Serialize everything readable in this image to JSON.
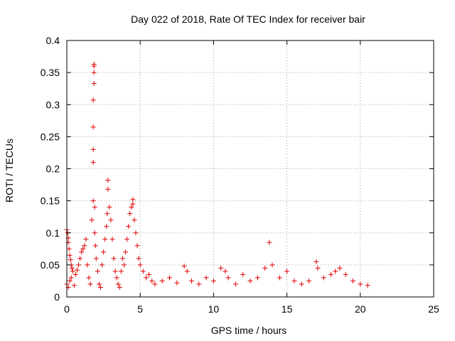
{
  "chart_data": {
    "type": "scatter",
    "title": "Day 022 of 2018, Rate Of TEC Index for receiver bair",
    "xlabel": "GPS time / hours",
    "ylabel": "ROTI / TECUs",
    "xlim": [
      0,
      25
    ],
    "ylim": [
      0,
      0.4
    ],
    "xticks": [
      0,
      5,
      10,
      15,
      20,
      25
    ],
    "yticks": [
      0,
      0.05,
      0.1,
      0.15,
      0.2,
      0.25,
      0.3,
      0.35,
      0.4
    ],
    "xtick_labels": [
      "0",
      "5",
      "10",
      "15",
      "20",
      "25"
    ],
    "ytick_labels": [
      "0",
      "0.05",
      "0.1",
      "0.15",
      "0.2",
      "0.25",
      "0.3",
      "0.35",
      "0.4"
    ],
    "grid": true,
    "marker": "+",
    "marker_color": "#e00000",
    "series": [
      {
        "points": [
          [
            0.0,
            0.105
          ],
          [
            0.05,
            0.1
          ],
          [
            0.1,
            0.092
          ],
          [
            0.1,
            0.085
          ],
          [
            0.15,
            0.075
          ],
          [
            0.2,
            0.065
          ],
          [
            0.25,
            0.058
          ],
          [
            0.3,
            0.05
          ],
          [
            0.35,
            0.045
          ],
          [
            0.4,
            0.04
          ],
          [
            0.0,
            0.02
          ],
          [
            0.1,
            0.015
          ],
          [
            0.2,
            0.025
          ],
          [
            0.3,
            0.03
          ],
          [
            0.5,
            0.018
          ],
          [
            0.6,
            0.035
          ],
          [
            0.7,
            0.042
          ],
          [
            0.8,
            0.05
          ],
          [
            0.9,
            0.06
          ],
          [
            1.0,
            0.07
          ],
          [
            1.1,
            0.075
          ],
          [
            1.2,
            0.08
          ],
          [
            1.3,
            0.09
          ],
          [
            1.4,
            0.05
          ],
          [
            1.5,
            0.03
          ],
          [
            1.6,
            0.02
          ],
          [
            1.7,
            0.12
          ],
          [
            1.8,
            0.15
          ],
          [
            1.8,
            0.21
          ],
          [
            1.8,
            0.23
          ],
          [
            1.8,
            0.265
          ],
          [
            1.8,
            0.307
          ],
          [
            1.85,
            0.333
          ],
          [
            1.85,
            0.35
          ],
          [
            1.85,
            0.36
          ],
          [
            1.85,
            0.363
          ],
          [
            1.9,
            0.14
          ],
          [
            1.9,
            0.1
          ],
          [
            1.95,
            0.08
          ],
          [
            2.0,
            0.06
          ],
          [
            2.1,
            0.04
          ],
          [
            2.2,
            0.02
          ],
          [
            2.3,
            0.015
          ],
          [
            2.4,
            0.05
          ],
          [
            2.5,
            0.07
          ],
          [
            2.6,
            0.09
          ],
          [
            2.7,
            0.11
          ],
          [
            2.75,
            0.13
          ],
          [
            2.8,
            0.168
          ],
          [
            2.8,
            0.182
          ],
          [
            2.9,
            0.14
          ],
          [
            3.0,
            0.12
          ],
          [
            3.1,
            0.09
          ],
          [
            3.2,
            0.06
          ],
          [
            3.3,
            0.04
          ],
          [
            3.4,
            0.03
          ],
          [
            3.5,
            0.02
          ],
          [
            3.6,
            0.015
          ],
          [
            3.7,
            0.04
          ],
          [
            3.8,
            0.06
          ],
          [
            3.9,
            0.05
          ],
          [
            4.0,
            0.07
          ],
          [
            4.1,
            0.09
          ],
          [
            4.2,
            0.11
          ],
          [
            4.3,
            0.13
          ],
          [
            4.4,
            0.14
          ],
          [
            4.5,
            0.152
          ],
          [
            4.5,
            0.145
          ],
          [
            4.6,
            0.12
          ],
          [
            4.7,
            0.1
          ],
          [
            4.8,
            0.08
          ],
          [
            4.9,
            0.06
          ],
          [
            5.0,
            0.05
          ],
          [
            5.2,
            0.04
          ],
          [
            5.4,
            0.03
          ],
          [
            5.6,
            0.035
          ],
          [
            5.8,
            0.025
          ],
          [
            6.0,
            0.02
          ],
          [
            6.5,
            0.025
          ],
          [
            7.0,
            0.03
          ],
          [
            7.5,
            0.022
          ],
          [
            8.0,
            0.048
          ],
          [
            8.2,
            0.04
          ],
          [
            8.5,
            0.025
          ],
          [
            9.0,
            0.02
          ],
          [
            9.5,
            0.03
          ],
          [
            10.0,
            0.025
          ],
          [
            10.5,
            0.045
          ],
          [
            10.8,
            0.04
          ],
          [
            11.0,
            0.03
          ],
          [
            11.5,
            0.02
          ],
          [
            12.0,
            0.035
          ],
          [
            12.5,
            0.025
          ],
          [
            13.0,
            0.03
          ],
          [
            13.5,
            0.045
          ],
          [
            13.8,
            0.085
          ],
          [
            14.0,
            0.05
          ],
          [
            14.5,
            0.03
          ],
          [
            15.0,
            0.04
          ],
          [
            15.5,
            0.025
          ],
          [
            16.0,
            0.02
          ],
          [
            16.5,
            0.025
          ],
          [
            17.0,
            0.055
          ],
          [
            17.1,
            0.045
          ],
          [
            17.5,
            0.03
          ],
          [
            18.0,
            0.035
          ],
          [
            18.3,
            0.04
          ],
          [
            18.6,
            0.045
          ],
          [
            19.0,
            0.035
          ],
          [
            19.5,
            0.025
          ],
          [
            20.0,
            0.02
          ],
          [
            20.5,
            0.018
          ]
        ]
      }
    ]
  }
}
